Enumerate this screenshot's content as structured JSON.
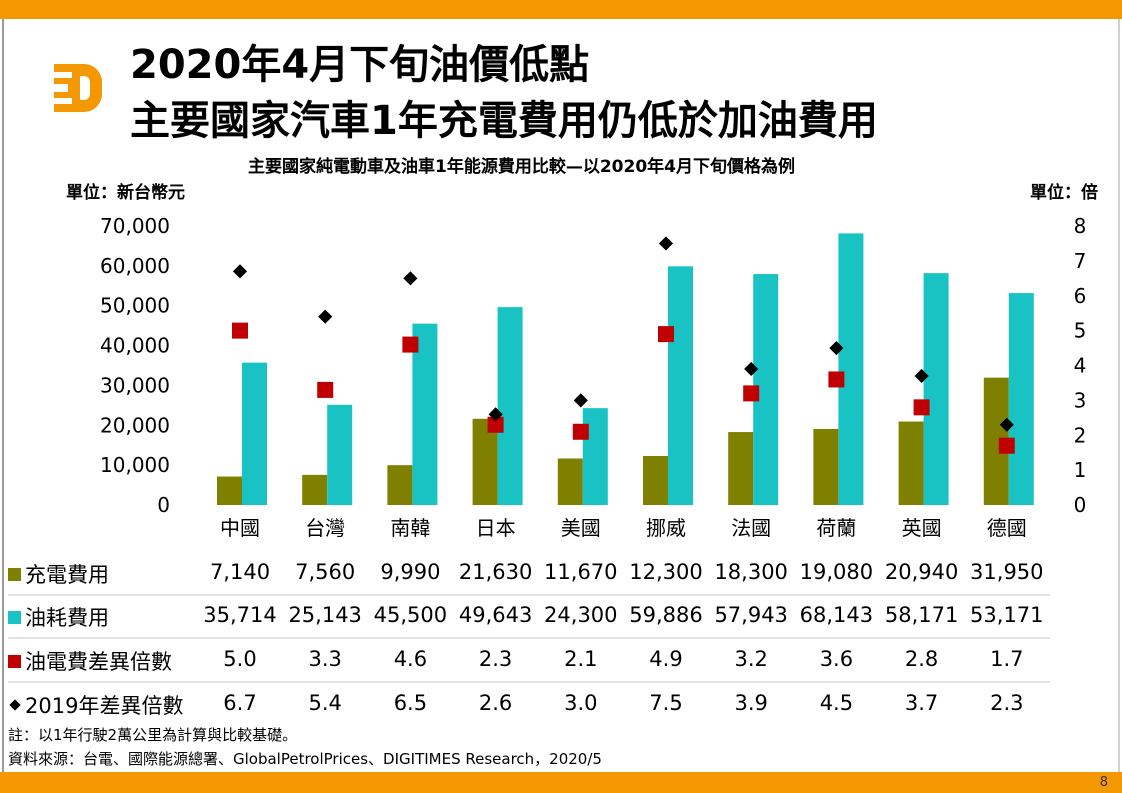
{
  "header": {
    "title_line1": "2020年4月下旬油價低點",
    "title_line2": "主要國家汽車1年充電費用仍低於加油費用",
    "logo": "DIGITIMES D logo"
  },
  "page_number": "8",
  "chart_data": {
    "type": "bar",
    "title": "主要國家純電動車及油車1年能源費用比較—以2020年4月下旬價格為例",
    "ylabel": "單位：新台幣元",
    "y2label": "單位：倍",
    "ylim": [
      0,
      70000
    ],
    "y2lim": [
      0,
      8
    ],
    "yticks": [
      "0",
      "10,000",
      "20,000",
      "30,000",
      "40,000",
      "50,000",
      "60,000",
      "70,000"
    ],
    "y2ticks": [
      "0",
      "1",
      "2",
      "3",
      "4",
      "5",
      "6",
      "7",
      "8"
    ],
    "categories": [
      "中國",
      "台灣",
      "南韓",
      "日本",
      "美國",
      "挪威",
      "法國",
      "荷蘭",
      "英國",
      "德國"
    ],
    "series": [
      {
        "name": "充電費用",
        "type": "bar",
        "color": "#7f7f00",
        "values": [
          7140,
          7560,
          9990,
          21630,
          11670,
          12300,
          18300,
          19080,
          20940,
          31950
        ],
        "labels": [
          "7,140",
          "7,560",
          "9,990",
          "21,630",
          "11,670",
          "12,300",
          "18,300",
          "19,080",
          "20,940",
          "31,950"
        ]
      },
      {
        "name": "油耗費用",
        "type": "bar",
        "color": "#19c3c3",
        "values": [
          35714,
          25143,
          45500,
          49643,
          24300,
          59886,
          57943,
          68143,
          58171,
          53171
        ],
        "labels": [
          "35,714",
          "25,143",
          "45,500",
          "49,643",
          "24,300",
          "59,886",
          "57,943",
          "68,143",
          "58,171",
          "53,171"
        ]
      },
      {
        "name": "油電費差異倍數",
        "type": "scatter",
        "marker": "square",
        "axis": "right",
        "color": "#c00000",
        "values": [
          5.0,
          3.3,
          4.6,
          2.3,
          2.1,
          4.9,
          3.2,
          3.6,
          2.8,
          1.7
        ],
        "labels": [
          "5.0",
          "3.3",
          "4.6",
          "2.3",
          "2.1",
          "4.9",
          "3.2",
          "3.6",
          "2.8",
          "1.7"
        ]
      },
      {
        "name": "2019年差異倍數",
        "type": "scatter",
        "marker": "diamond",
        "axis": "right",
        "color": "#000000",
        "values": [
          6.7,
          5.4,
          6.5,
          2.6,
          3.0,
          7.5,
          3.9,
          4.5,
          3.7,
          2.3
        ],
        "labels": [
          "6.7",
          "5.4",
          "6.5",
          "2.6",
          "3.0",
          "7.5",
          "3.9",
          "4.5",
          "3.7",
          "2.3"
        ]
      }
    ],
    "legend": "table-below"
  },
  "notes": {
    "note": "註：以1年行駛2萬公里為計算與比較基礎。",
    "source": "資料來源：台電、國際能源總署、GlobalPetrolPrices、DIGITIMES Research，2020/5"
  }
}
